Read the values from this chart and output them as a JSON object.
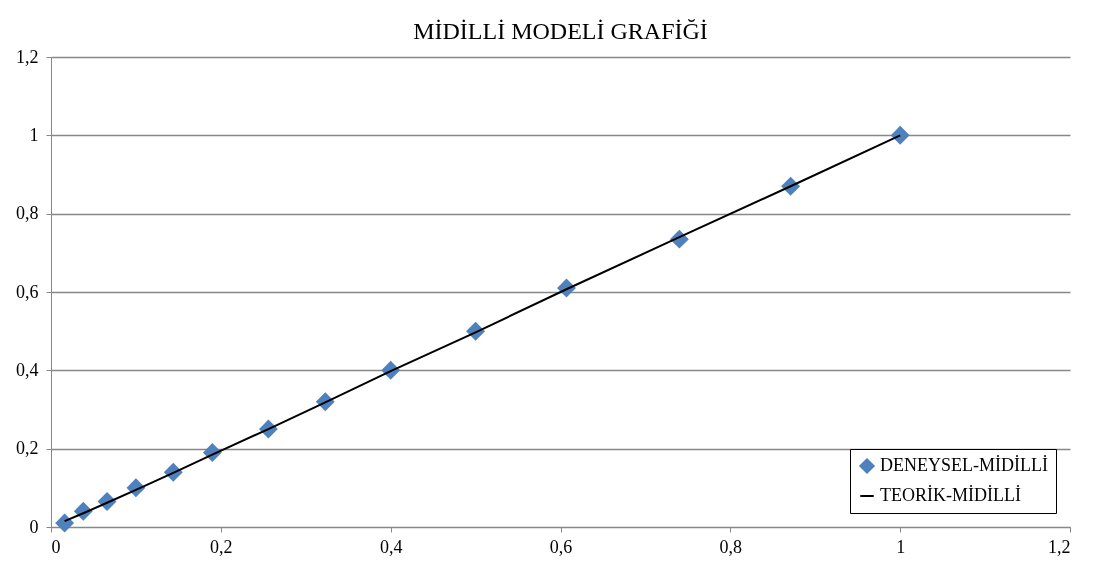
{
  "chart_data": {
    "type": "scatter",
    "title": "MİDİLLİ MODELİ GRAFİĞİ",
    "series": [
      {
        "name": "DENEYSEL-MİDİLLİ",
        "marker": "diamond",
        "color": "#4f81bd",
        "x": [
          0.016,
          0.038,
          0.066,
          0.1,
          0.144,
          0.19,
          0.256,
          0.323,
          0.4,
          0.5,
          0.607,
          0.74,
          0.871,
          1.0
        ],
        "values": [
          0.01,
          0.04,
          0.065,
          0.1,
          0.14,
          0.19,
          0.25,
          0.32,
          0.4,
          0.5,
          0.61,
          0.735,
          0.87,
          1.0
        ]
      },
      {
        "name": "TEORİK-MİDİLLİ",
        "type": "line",
        "line_style": "solid",
        "color": "#000000",
        "x": [
          0.016,
          0.038,
          0.066,
          0.1,
          0.144,
          0.19,
          0.256,
          0.323,
          0.4,
          0.5,
          0.607,
          0.74,
          0.871,
          1.0
        ],
        "values": [
          0.015,
          0.035,
          0.062,
          0.095,
          0.138,
          0.185,
          0.25,
          0.318,
          0.398,
          0.497,
          0.607,
          0.74,
          0.87,
          1.0
        ]
      }
    ],
    "xlim": [
      0,
      1.2
    ],
    "ylim": [
      0,
      1.2
    ],
    "xticks": [
      0,
      {
        "value": 0.2,
        "label": "0,2"
      },
      {
        "value": 0.4,
        "label": "0,4"
      },
      {
        "value": 0.6,
        "label": "0,6"
      },
      {
        "value": 0.8,
        "label": "0,8"
      },
      1,
      {
        "value": 1.2,
        "label": "1,2"
      }
    ],
    "yticks": [
      0,
      {
        "value": 0.2,
        "label": "0,2"
      },
      {
        "value": 0.4,
        "label": "0,4"
      },
      {
        "value": 0.6,
        "label": "0,6"
      },
      {
        "value": 0.8,
        "label": "0,8"
      },
      1,
      {
        "value": 1.2,
        "label": "1,2"
      }
    ],
    "grid": "y",
    "legend": "bottom right"
  }
}
